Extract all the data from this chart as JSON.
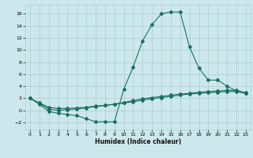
{
  "xlabel": "Humidex (Indice chaleur)",
  "bg_color": "#cde8ec",
  "grid_color": "#aacccc",
  "line_color": "#1a7060",
  "xlim": [
    -0.5,
    23.5
  ],
  "ylim": [
    -3.2,
    17.5
  ],
  "xticks": [
    0,
    1,
    2,
    3,
    4,
    5,
    6,
    7,
    8,
    9,
    10,
    11,
    12,
    13,
    14,
    15,
    16,
    17,
    18,
    19,
    20,
    21,
    22,
    23
  ],
  "yticks": [
    -2,
    0,
    2,
    4,
    6,
    8,
    10,
    12,
    14,
    16
  ],
  "line1_x": [
    0,
    1,
    2,
    3,
    4,
    5,
    6,
    7,
    8,
    9,
    10,
    11,
    12,
    13,
    14,
    15,
    16,
    17,
    18,
    19,
    20,
    21,
    22,
    23
  ],
  "line1_y": [
    2.0,
    1.0,
    -0.2,
    -0.5,
    -0.7,
    -0.9,
    -1.4,
    -1.9,
    -1.9,
    -1.9,
    3.5,
    7.2,
    11.5,
    14.2,
    16.0,
    16.3,
    16.3,
    10.5,
    7.0,
    5.0,
    5.0,
    4.0,
    3.2,
    2.8
  ],
  "line2_x": [
    0,
    1,
    2,
    3,
    4,
    5,
    6,
    7,
    8,
    9,
    10,
    11,
    12,
    13,
    14,
    15,
    16,
    17,
    18,
    19,
    20,
    21,
    22,
    23
  ],
  "line2_y": [
    2.0,
    1.2,
    0.5,
    0.3,
    0.3,
    0.4,
    0.5,
    0.7,
    0.8,
    1.0,
    1.3,
    1.6,
    1.9,
    2.1,
    2.3,
    2.5,
    2.7,
    2.8,
    3.0,
    3.1,
    3.2,
    3.3,
    3.3,
    2.9
  ],
  "line3_x": [
    0,
    1,
    2,
    3,
    4,
    5,
    6,
    7,
    8,
    9,
    10,
    11,
    12,
    13,
    14,
    15,
    16,
    17,
    18,
    19,
    20,
    21,
    22,
    23
  ],
  "line3_y": [
    2.0,
    1.2,
    0.2,
    0.0,
    0.1,
    0.2,
    0.4,
    0.6,
    0.8,
    1.0,
    1.2,
    1.4,
    1.7,
    1.9,
    2.1,
    2.3,
    2.5,
    2.7,
    2.8,
    2.9,
    3.0,
    3.1,
    3.1,
    2.8
  ]
}
